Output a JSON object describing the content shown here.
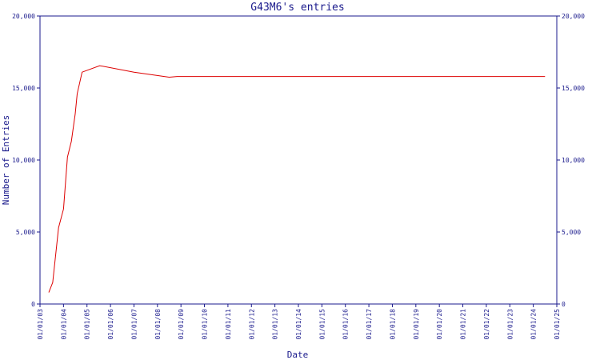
{
  "chart_data": {
    "type": "line",
    "title": "G43M6's entries",
    "xlabel": "Date",
    "ylabel": "Number of Entries",
    "ylim": [
      0,
      20000
    ],
    "yticks": [
      0,
      5000,
      10000,
      15000,
      20000
    ],
    "ytick_labels": [
      "0",
      "5,000",
      "10,000",
      "15,000",
      "20,000"
    ],
    "xlim": [
      "2001-01-03",
      "2001-01-25"
    ],
    "xtick_labels": [
      "01/01/03",
      "01/01/04",
      "01/01/05",
      "01/01/06",
      "01/01/07",
      "01/01/08",
      "01/01/09",
      "01/01/10",
      "01/01/11",
      "01/01/12",
      "01/01/13",
      "01/01/14",
      "01/01/15",
      "01/01/16",
      "01/01/17",
      "01/01/18",
      "01/01/19",
      "01/01/20",
      "01/01/21",
      "01/01/22",
      "01/01/23",
      "01/01/24",
      "01/01/25"
    ],
    "grid": false,
    "colors": {
      "axis": "#1a1a8c",
      "line": "#dd0000"
    },
    "series": [
      {
        "x": [
          "2001-01-03 09:00",
          "2001-01-03 13:00",
          "2001-01-03 19:00",
          "2001-01-04 00:00",
          "2001-01-04 04:00",
          "2001-01-04 08:00",
          "2001-01-04 12:00",
          "2001-01-04 14:00",
          "2001-01-04 19:00",
          "2001-01-05 13:00",
          "2001-01-07 00:00",
          "2001-01-08 12:00",
          "2001-01-08 20:00",
          "2001-01-09 00:00",
          "2001-01-24 12:00"
        ],
        "y": [
          800,
          1500,
          5300,
          6600,
          10200,
          11300,
          13200,
          14600,
          16100,
          16550,
          16100,
          15750,
          15800,
          15800,
          15800
        ]
      }
    ]
  }
}
